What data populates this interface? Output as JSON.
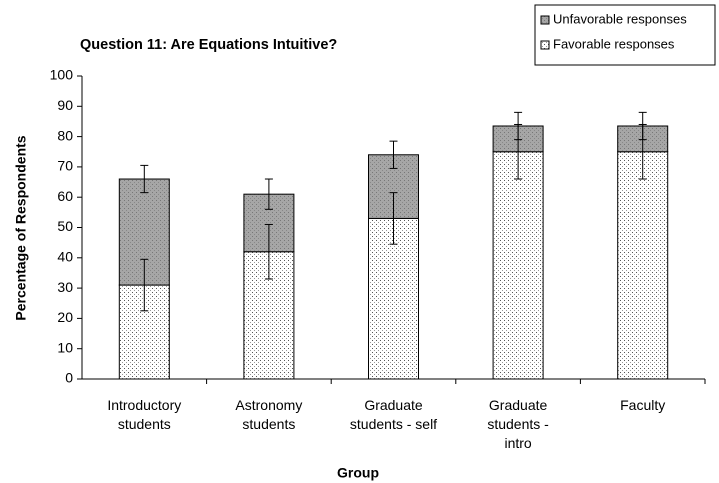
{
  "chart_data": {
    "type": "stacked-bar",
    "title": "Question 11: Are Equations Intuitive?",
    "x_label": "Group",
    "y_label": "Percentage of Respondents",
    "categories": [
      "Introductory students",
      "Astronomy students",
      "Graduate students - self",
      "Graduate students - intro",
      "Faculty"
    ],
    "series": [
      {
        "name": "Favorable responses",
        "color": "#ffffff",
        "values": [
          31,
          42,
          53,
          75,
          75
        ],
        "errors": [
          8.5,
          9,
          8.5,
          9,
          9
        ]
      },
      {
        "name": "Unfavorable responses",
        "color": "#a6a6a6",
        "values": [
          35,
          19,
          21,
          8.5,
          8.5
        ],
        "errors": [
          4.5,
          5,
          4.5,
          4.5,
          4.5
        ]
      }
    ],
    "ylim": [
      0,
      100
    ],
    "yticks": [
      0,
      10,
      20,
      30,
      40,
      50,
      60,
      70,
      80,
      90,
      100
    ],
    "grid": false,
    "legend": "top-right"
  }
}
